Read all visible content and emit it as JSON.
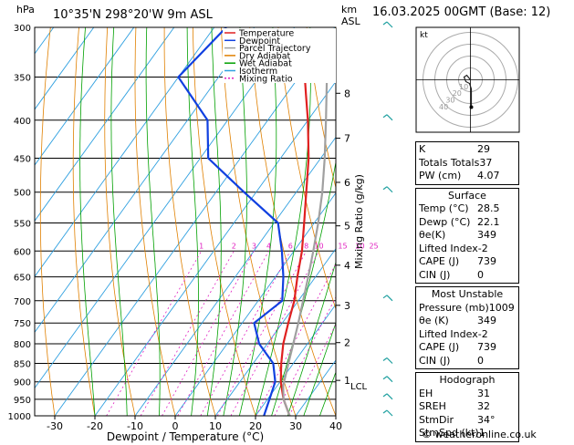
{
  "header": {
    "left_unit": "hPa",
    "location": "10°35'N 298°20'W 9m ASL",
    "km_label": "km",
    "asl_label": "ASL",
    "date": "16.03.2025 00GMT (Base: 12)"
  },
  "chart_data": {
    "type": "skew-t log-p",
    "xlabel": "Dewpoint / Temperature (°C)",
    "ylabel_right": "Mixing Ratio (g/kg)",
    "pressure_levels": [
      300,
      350,
      400,
      450,
      500,
      550,
      600,
      650,
      700,
      750,
      800,
      850,
      900,
      950,
      1000
    ],
    "x_ticks": [
      -30,
      -20,
      -10,
      0,
      10,
      20,
      30,
      40
    ],
    "xlim": [
      -35,
      40
    ],
    "ylim_hpa": [
      1000,
      300
    ],
    "km_levels": [
      {
        "km": "8",
        "p": 368
      },
      {
        "km": "7",
        "p": 423
      },
      {
        "km": "6",
        "p": 485
      },
      {
        "km": "5",
        "p": 555
      },
      {
        "km": "4",
        "p": 627
      },
      {
        "km": "3",
        "p": 710
      },
      {
        "km": "2",
        "p": 797
      },
      {
        "km": "1",
        "p": 896
      }
    ],
    "lcl": {
      "label": "LCL",
      "p": 911
    },
    "mixing_ratio_labels": [
      "1",
      "2",
      "3",
      "4",
      "6",
      "8",
      "10",
      "15",
      "20",
      "25"
    ],
    "mixing_ratio_values": [
      1,
      2,
      3,
      4,
      6,
      8,
      10,
      15,
      20,
      25
    ],
    "legend": [
      "Temperature",
      "Dewpoint",
      "Parcel Trajectory",
      "Dry Adiabat",
      "Wet Adiabat",
      "Isotherm",
      "Mixing Ratio"
    ],
    "series": [
      {
        "name": "Temperature",
        "color": "#e02020",
        "points": [
          [
            1000,
            28.5
          ],
          [
            950,
            24
          ],
          [
            900,
            20.2
          ],
          [
            850,
            17
          ],
          [
            800,
            14
          ],
          [
            750,
            11.5
          ],
          [
            700,
            9
          ],
          [
            650,
            5.5
          ],
          [
            600,
            2
          ],
          [
            550,
            -2.5
          ],
          [
            500,
            -7.5
          ],
          [
            450,
            -13
          ],
          [
            400,
            -20
          ],
          [
            370,
            -25
          ],
          [
            350,
            -28.5
          ]
        ]
      },
      {
        "name": "Dewpoint",
        "color": "#1040e0",
        "points": [
          [
            1000,
            22.1
          ],
          [
            950,
            20.5
          ],
          [
            900,
            18.8
          ],
          [
            850,
            15
          ],
          [
            800,
            8
          ],
          [
            750,
            3
          ],
          [
            700,
            6
          ],
          [
            650,
            2
          ],
          [
            600,
            -3
          ],
          [
            550,
            -9
          ],
          [
            500,
            -23
          ],
          [
            450,
            -38
          ],
          [
            400,
            -45
          ],
          [
            350,
            -60
          ],
          [
            300,
            -57
          ]
        ]
      },
      {
        "name": "Parcel Trajectory",
        "color": "#a0a0a0",
        "points": [
          [
            1000,
            28.5
          ],
          [
            950,
            24
          ],
          [
            911,
            21.5
          ],
          [
            850,
            18.8
          ],
          [
            800,
            16.5
          ],
          [
            750,
            14
          ],
          [
            700,
            11.2
          ],
          [
            650,
            8.2
          ],
          [
            600,
            4.8
          ],
          [
            550,
            1
          ],
          [
            500,
            -3.5
          ],
          [
            450,
            -9
          ],
          [
            400,
            -15.5
          ],
          [
            350,
            -23
          ]
        ]
      }
    ],
    "hodograph": {
      "label": "kt",
      "ring_labels": [
        "10",
        "20",
        "30",
        "40"
      ],
      "trace_color": "#202020"
    },
    "wind_barb_color": "#20a0a0"
  },
  "panel": {
    "top": [
      {
        "label": "K",
        "value": "29"
      },
      {
        "label": "Totals Totals",
        "value": "37"
      },
      {
        "label": "PW (cm)",
        "value": "4.07"
      }
    ],
    "surface": {
      "title": "Surface",
      "rows": [
        {
          "label": "Temp (°C)",
          "value": "28.5"
        },
        {
          "label": "Dewp (°C)",
          "value": "22.1"
        },
        {
          "label": "θe(K)",
          "value": "349"
        },
        {
          "label": "Lifted Index",
          "value": "-2"
        },
        {
          "label": "CAPE (J)",
          "value": "739"
        },
        {
          "label": "CIN (J)",
          "value": "0"
        }
      ]
    },
    "most_unstable": {
      "title": "Most Unstable",
      "rows": [
        {
          "label": "Pressure (mb)",
          "value": "1009"
        },
        {
          "label": "θe (K)",
          "value": "349"
        },
        {
          "label": "Lifted Index",
          "value": "-2"
        },
        {
          "label": "CAPE (J)",
          "value": "739"
        },
        {
          "label": "CIN (J)",
          "value": "0"
        }
      ]
    },
    "hodograph": {
      "title": "Hodograph",
      "rows": [
        {
          "label": "EH",
          "value": "31"
        },
        {
          "label": "SREH",
          "value": "32"
        },
        {
          "label": "StmDir",
          "value": "34°"
        },
        {
          "label": "StmSpd (kt)",
          "value": "1"
        }
      ]
    }
  },
  "footer": "© weatheronline.co.uk",
  "colors": {
    "isotherm": "#30a0e0",
    "dry_adiabat": "#e08000",
    "wet_adiabat": "#00a000",
    "mixing_ratio": "#e020c0"
  }
}
